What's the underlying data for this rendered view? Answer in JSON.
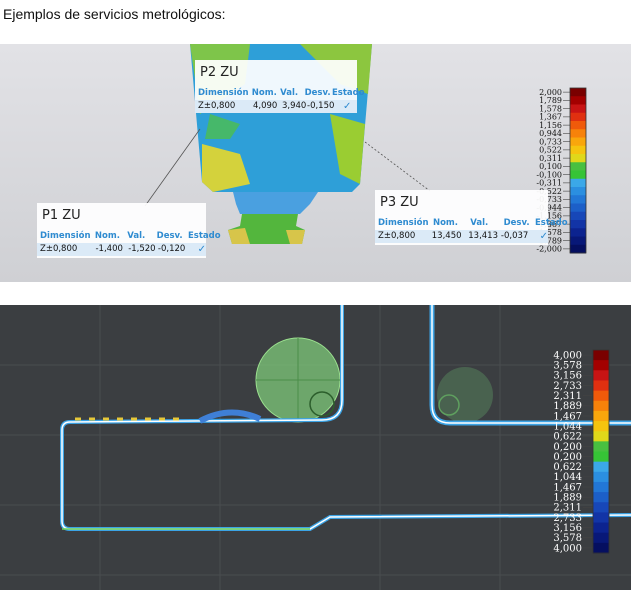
{
  "title": "Ejemplos de servicios metrológicos:",
  "top_image": {
    "callouts": [
      {
        "label": "P2 ZU",
        "headers": [
          "Dimensión",
          "Nom.",
          "Val.",
          "Desv.",
          "Estado"
        ],
        "row": [
          "Z±0,800",
          "4,090",
          "3,940",
          "-0,150"
        ]
      },
      {
        "label": "P1 ZU",
        "headers": [
          "Dimensión",
          "Nom.",
          "Val.",
          "Desv.",
          "Estado"
        ],
        "row": [
          "Z±0,800",
          "-1,400",
          "-1,520",
          "-0,120"
        ]
      },
      {
        "label": "P3 ZU",
        "headers": [
          "Dimensión",
          "Nom.",
          "Val.",
          "Desv.",
          "Estado"
        ],
        "row": [
          "Z±0,800",
          "13,450",
          "13,413",
          "-0,037"
        ]
      }
    ],
    "scale_labels": [
      "2,000",
      "1,789",
      "1,578",
      "1,367",
      "1,156",
      "0,944",
      "0,733",
      "0,522",
      "0,311",
      "0,100",
      "-0,100",
      "-0,311",
      "-0,522",
      "-0,733",
      "-0,944",
      "-1,156",
      "-1,367",
      "-1,578",
      "-1,789",
      "-2,000"
    ]
  },
  "bottom_image": {
    "scale_labels": [
      "4,000",
      "3,578",
      "3,156",
      "2,733",
      "2,311",
      "1,889",
      "1,467",
      "1,044",
      "0,622",
      "0,200",
      "0,200",
      "0,622",
      "1,044",
      "1,467",
      "1,889",
      "2,311",
      "2,733",
      "3,156",
      "3,578",
      "4,000"
    ]
  }
}
